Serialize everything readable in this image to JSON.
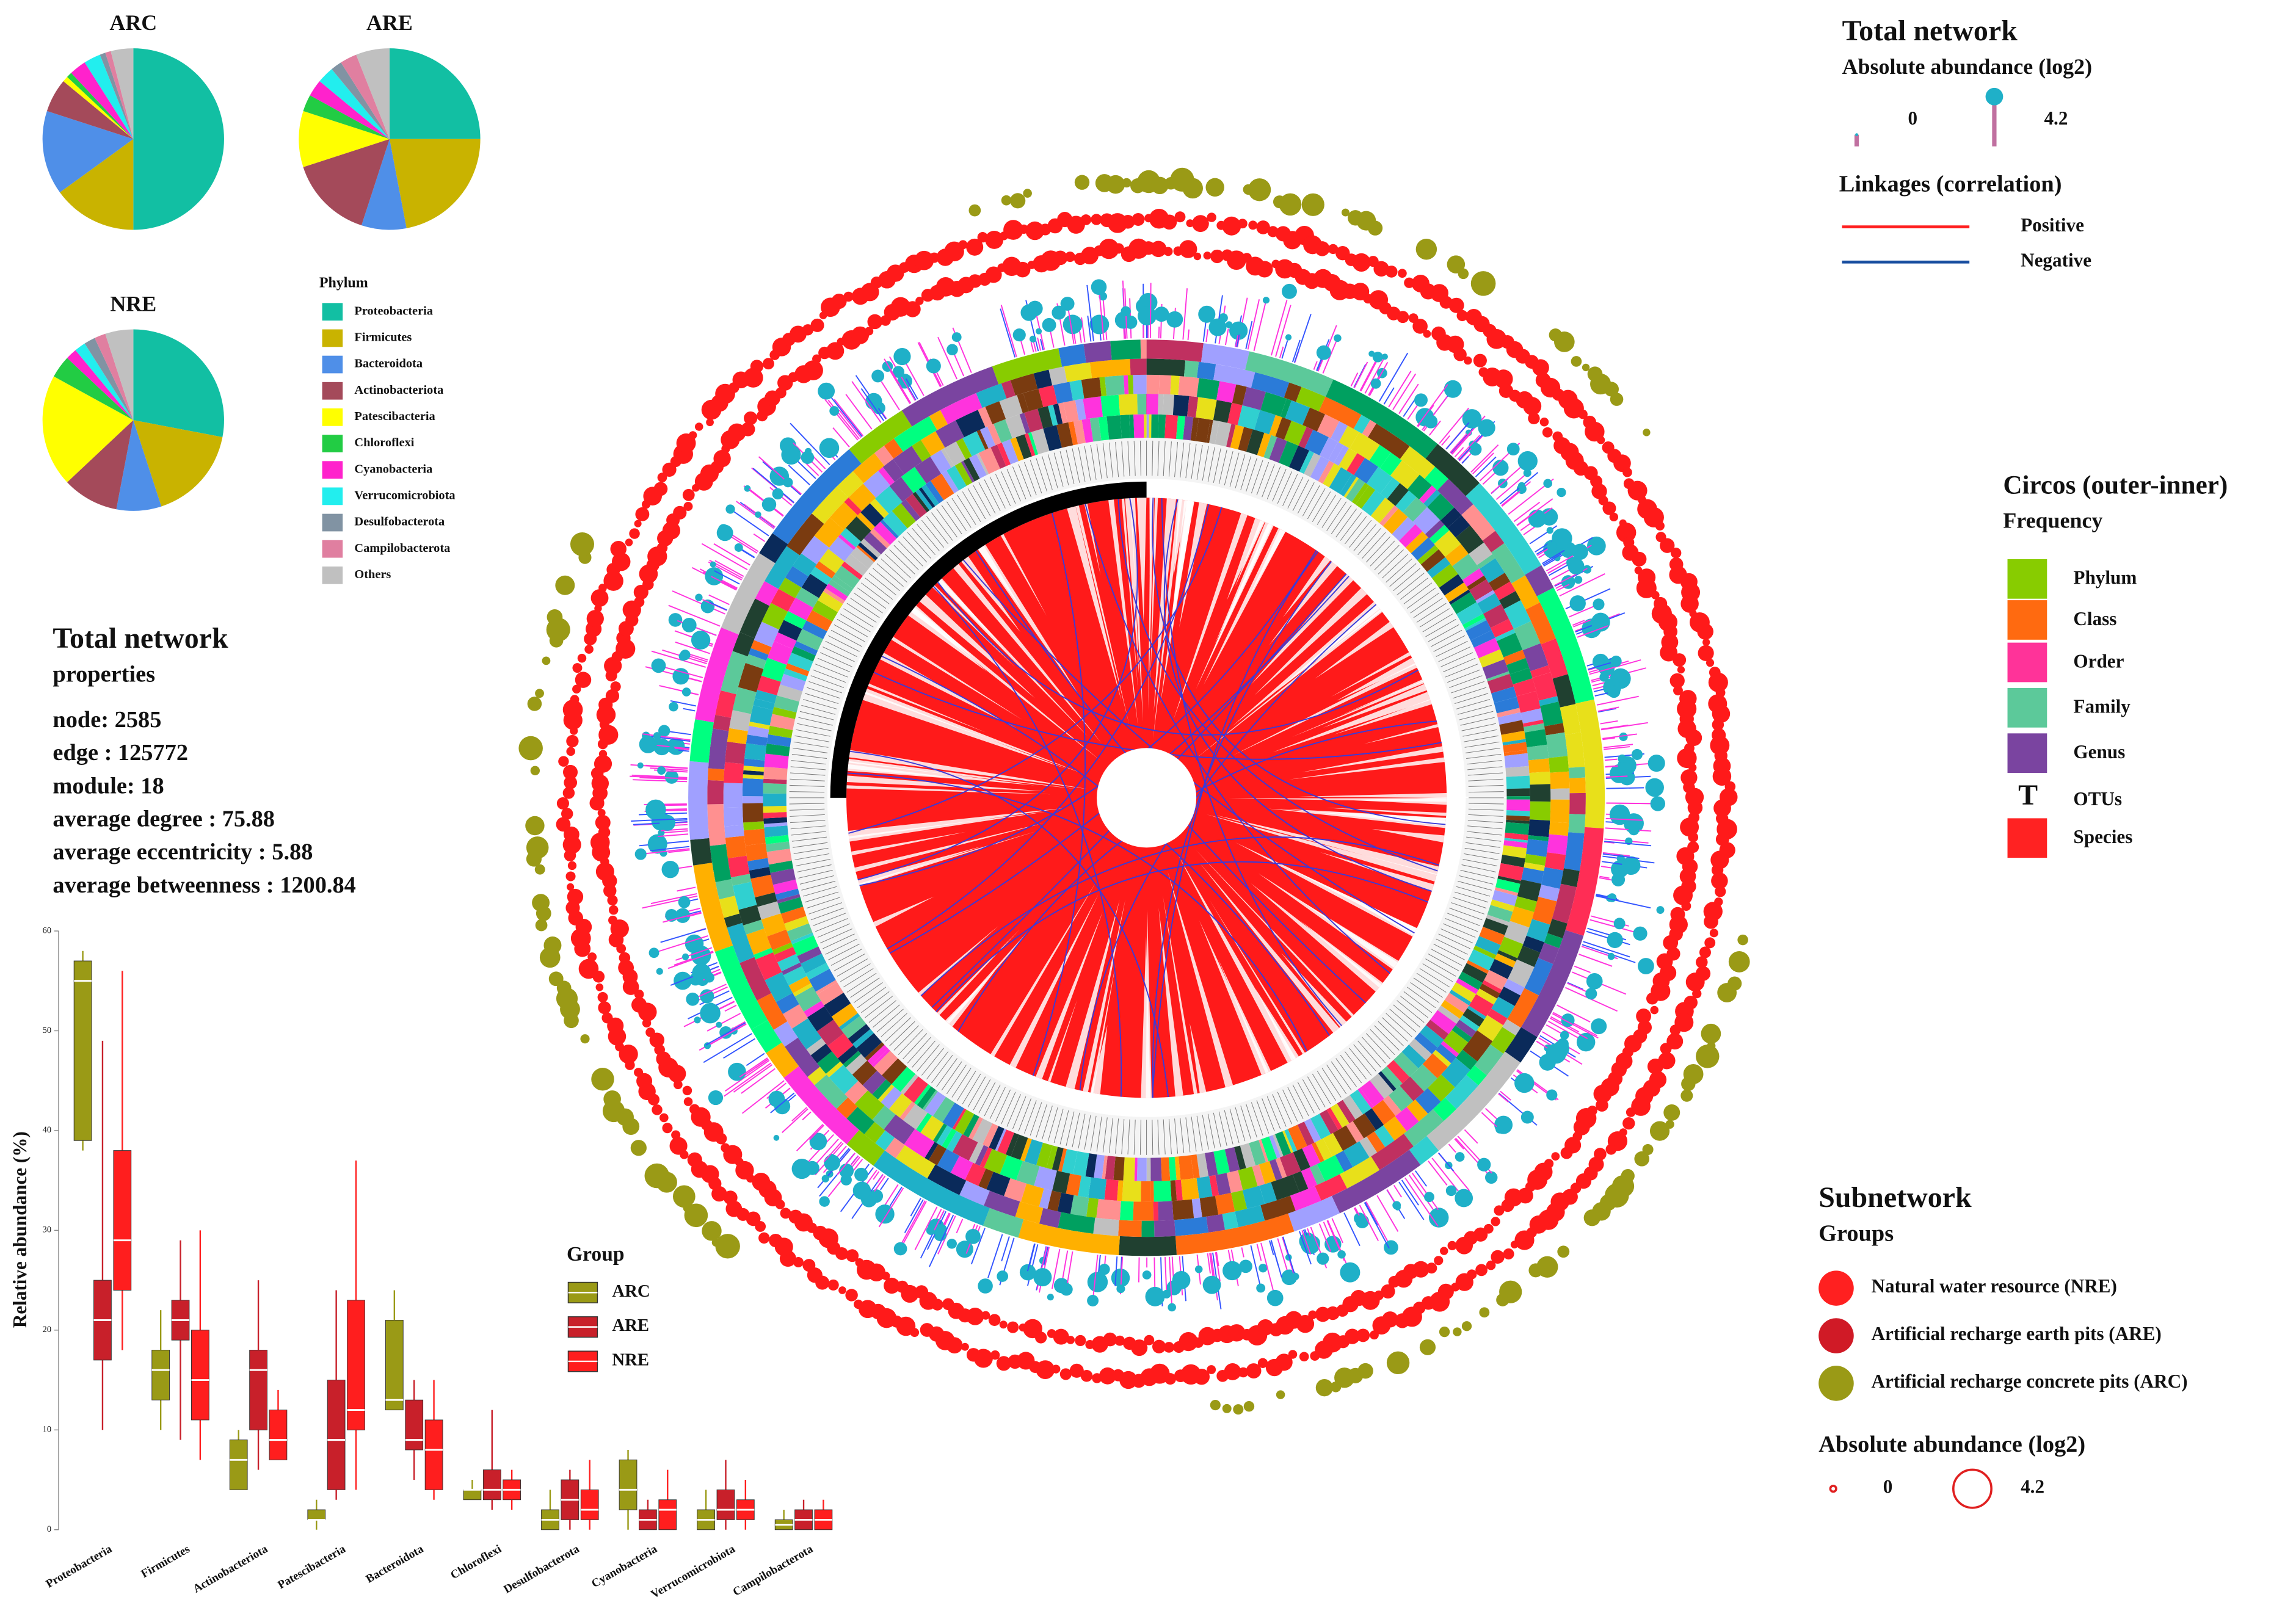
{
  "chart_data": [
    {
      "type": "pie",
      "title": "ARC",
      "categories": [
        "Proteobacteria",
        "Firmicutes",
        "Bacteroidota",
        "Actinobacteriota",
        "Patescibacteria",
        "Chloroflexi",
        "Cyanobacteria",
        "Verrucomicrobiota",
        "Desulfobacterota",
        "Campilobacterota",
        "Others"
      ],
      "values": [
        50,
        15,
        15,
        6,
        1,
        1,
        3,
        3,
        1,
        1,
        4
      ],
      "colors": [
        "#12bfa3",
        "#c9b300",
        "#4f8fe8",
        "#a44a5a",
        "#ffff00",
        "#22cc44",
        "#ff22cc",
        "#22eeee",
        "#8193a3",
        "#e07fa0",
        "#c0c0c0"
      ]
    },
    {
      "type": "pie",
      "title": "ARE",
      "categories": [
        "Proteobacteria",
        "Firmicutes",
        "Bacteroidota",
        "Actinobacteriota",
        "Patescibacteria",
        "Chloroflexi",
        "Cyanobacteria",
        "Verrucomicrobiota",
        "Desulfobacterota",
        "Campilobacterota",
        "Others"
      ],
      "values": [
        25,
        22,
        8,
        15,
        10,
        3,
        3,
        3,
        2,
        3,
        6
      ],
      "colors": [
        "#12bfa3",
        "#c9b300",
        "#4f8fe8",
        "#a44a5a",
        "#ffff00",
        "#22cc44",
        "#ff22cc",
        "#22eeee",
        "#8193a3",
        "#e07fa0",
        "#c0c0c0"
      ]
    },
    {
      "type": "pie",
      "title": "NRE",
      "categories": [
        "Proteobacteria",
        "Firmicutes",
        "Bacteroidota",
        "Actinobacteriota",
        "Patescibacteria",
        "Chloroflexi",
        "Cyanobacteria",
        "Verrucomicrobiota",
        "Desulfobacterota",
        "Campilobacterota",
        "Others"
      ],
      "values": [
        28,
        17,
        8,
        10,
        20,
        4,
        2,
        2,
        2,
        2,
        5
      ],
      "colors": [
        "#12bfa3",
        "#c9b300",
        "#4f8fe8",
        "#a44a5a",
        "#ffff00",
        "#22cc44",
        "#ff22cc",
        "#22eeee",
        "#8193a3",
        "#e07fa0",
        "#c0c0c0"
      ],
      "legend_title": "Phylum"
    },
    {
      "type": "box",
      "y_label": "Relative abundance (%)",
      "legend_title": "Group",
      "categories": [
        "Proteobacteria",
        "Firmicutes",
        "Actinobacteriota",
        "Patescibacteria",
        "Bacteroidota",
        "Chloroflexi",
        "Desulfobacterota",
        "Cyanobacteria",
        "Verrucomicrobiota",
        "Campilobacterota"
      ],
      "ylim": [
        0,
        60
      ],
      "yticks": [
        0,
        10,
        20,
        30,
        40,
        50,
        60
      ],
      "series": [
        {
          "name": "ARC",
          "color": "#9a9a16",
          "low": [
            38,
            10,
            4,
            0,
            12,
            3,
            0,
            0,
            0,
            0
          ],
          "q1": [
            39,
            13,
            4,
            1,
            12,
            3,
            0,
            2,
            0,
            0
          ],
          "median": [
            55,
            16,
            7,
            1,
            13,
            4,
            1,
            4,
            1,
            0.5
          ],
          "q3": [
            57,
            18,
            9,
            2,
            21,
            4,
            2,
            7,
            2,
            1
          ],
          "high": [
            58,
            22,
            10,
            3,
            24,
            5,
            4,
            8,
            4,
            2
          ]
        },
        {
          "name": "ARE",
          "color": "#c8202a",
          "low": [
            10,
            9,
            6,
            3,
            5,
            2,
            0,
            0,
            0,
            0
          ],
          "q1": [
            17,
            19,
            10,
            4,
            8,
            3,
            1,
            0,
            1,
            0
          ],
          "median": [
            21,
            21,
            16,
            9,
            9,
            4,
            3,
            1,
            2,
            1
          ],
          "q3": [
            25,
            23,
            18,
            15,
            13,
            6,
            5,
            2,
            4,
            2
          ],
          "high": [
            49,
            29,
            25,
            24,
            15,
            12,
            6,
            3,
            7,
            3
          ]
        },
        {
          "name": "NRE",
          "color": "#ff1e1e",
          "low": [
            18,
            7,
            7,
            4,
            3,
            2,
            0,
            0,
            0,
            0
          ],
          "q1": [
            24,
            11,
            7,
            10,
            4,
            3,
            1,
            0,
            1,
            0
          ],
          "median": [
            29,
            15,
            9,
            12,
            8,
            4,
            2,
            2,
            2,
            1
          ],
          "q3": [
            38,
            20,
            12,
            23,
            11,
            5,
            4,
            3,
            3,
            2
          ],
          "high": [
            56,
            30,
            14,
            37,
            15,
            6,
            7,
            6,
            5,
            3
          ]
        }
      ]
    }
  ],
  "properties": {
    "title": "Total network",
    "subtitle": "properties",
    "lines": [
      "node: 2585",
      "edge : 125772",
      "module: 18",
      "average degree : 75.88",
      "average eccentricity : 5.88",
      "average betweenness : 1200.84"
    ]
  },
  "total_legend": {
    "title": "Total network",
    "subtitle": "Absolute abundance (log2)",
    "min": 0,
    "max": 4.2,
    "linkage_title": "Linkages (correlation)",
    "linkages": [
      {
        "name": "Positive",
        "color": "#ff2020"
      },
      {
        "name": "Negative",
        "color": "#1a4fa0"
      }
    ]
  },
  "circos_legend": {
    "title": "Circos (outer-inner)",
    "subtitle": "Frequency",
    "items": [
      {
        "name": "Phylum",
        "color": "#88cc00"
      },
      {
        "name": "Class",
        "color": "#ff6a10"
      },
      {
        "name": "Order",
        "color": "#ff3399"
      },
      {
        "name": "Family",
        "color": "#5cc99a"
      },
      {
        "name": "Genus",
        "color": "#7a44a0"
      },
      {
        "name": "OTUs",
        "symbol": "T"
      },
      {
        "name": "Species",
        "color": "#ff2222"
      }
    ]
  },
  "subnetwork_legend": {
    "title": "Subnetwork",
    "subtitle": "Groups",
    "items": [
      {
        "name": "Natural water resource (NRE)",
        "color": "#ff2020"
      },
      {
        "name": "Artificial recharge earth pits (ARE)",
        "color": "#d01a26"
      },
      {
        "name": "Artificial recharge concrete pits (ARC)",
        "color": "#9a9a16"
      }
    ],
    "size_title": "Absolute abundance (log2)",
    "min": 0,
    "max": 4.2
  }
}
